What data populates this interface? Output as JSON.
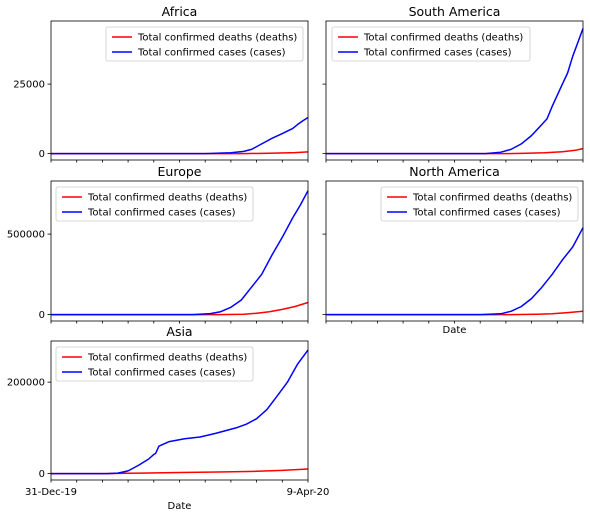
{
  "chart_data": [
    {
      "type": "line",
      "title": "Africa",
      "xlabel": "",
      "x_range": [
        "31-Dec-19",
        "9-Apr-20"
      ],
      "ylim": [
        -2300,
        47700
      ],
      "yticks": [
        0,
        25000
      ],
      "ytick_labels": [
        "0",
        "25000"
      ],
      "legend_position": "top-right",
      "series": [
        {
          "name": "Total confirmed deaths (deaths)",
          "color": "#ff0000",
          "x": [
            0,
            75,
            85,
            95,
            100
          ],
          "y": [
            0,
            0,
            150,
            350,
            600
          ]
        },
        {
          "name": "Total confirmed cases (cases)",
          "color": "#0000ff",
          "x": [
            0,
            60,
            70,
            75,
            78,
            82,
            86,
            90,
            94,
            96,
            98,
            100
          ],
          "y": [
            0,
            0,
            300,
            800,
            1500,
            3500,
            5500,
            7200,
            9000,
            10500,
            11800,
            13000
          ]
        }
      ]
    },
    {
      "type": "line",
      "title": "South America",
      "xlabel": "",
      "x_range": [
        "31-Dec-19",
        "9-Apr-20"
      ],
      "ylim": [
        -2300,
        47700
      ],
      "yticks": [
        0,
        25000
      ],
      "ytick_labels": [],
      "legend_position": "top-left",
      "series": [
        {
          "name": "Total confirmed deaths (deaths)",
          "color": "#ff0000",
          "x": [
            0,
            70,
            78,
            85,
            92,
            97,
            100
          ],
          "y": [
            0,
            0,
            100,
            300,
            700,
            1200,
            1800
          ]
        },
        {
          "name": "Total confirmed cases (cases)",
          "color": "#0000ff",
          "x": [
            0,
            62,
            68,
            72,
            76,
            80,
            83,
            86,
            88,
            90,
            92,
            94,
            96,
            98,
            100
          ],
          "y": [
            0,
            0,
            500,
            1500,
            3500,
            6500,
            9500,
            12500,
            17000,
            21000,
            25000,
            29000,
            35000,
            40000,
            45000
          ]
        }
      ]
    },
    {
      "type": "line",
      "title": "Europe",
      "xlabel": "",
      "x_range": [
        "31-Dec-19",
        "9-Apr-20"
      ],
      "ylim": [
        -40000,
        830000
      ],
      "yticks": [
        0,
        500000
      ],
      "ytick_labels": [
        "0",
        "500000"
      ],
      "legend_position": "top-left",
      "series": [
        {
          "name": "Total confirmed deaths (deaths)",
          "color": "#ff0000",
          "x": [
            0,
            65,
            75,
            80,
            85,
            90,
            95,
            100
          ],
          "y": [
            0,
            0,
            2000,
            8000,
            18000,
            32000,
            50000,
            75000
          ]
        },
        {
          "name": "Total confirmed cases (cases)",
          "color": "#0000ff",
          "x": [
            0,
            55,
            62,
            66,
            70,
            74,
            78,
            82,
            86,
            90,
            94,
            97,
            100
          ],
          "y": [
            0,
            0,
            6000,
            18000,
            45000,
            90000,
            170000,
            250000,
            370000,
            480000,
            600000,
            680000,
            770000
          ]
        }
      ]
    },
    {
      "type": "line",
      "title": "North America",
      "xlabel": "Date",
      "x_range": [
        "31-Dec-19",
        "9-Apr-20"
      ],
      "ylim": [
        -40000,
        830000
      ],
      "yticks": [
        0,
        500000
      ],
      "ytick_labels": [],
      "legend_position": "top-right",
      "series": [
        {
          "name": "Total confirmed deaths (deaths)",
          "color": "#ff0000",
          "x": [
            0,
            72,
            82,
            88,
            94,
            100
          ],
          "y": [
            0,
            0,
            2000,
            5000,
            12000,
            20000
          ]
        },
        {
          "name": "Total confirmed cases (cases)",
          "color": "#0000ff",
          "x": [
            0,
            60,
            68,
            72,
            76,
            80,
            84,
            88,
            92,
            96,
            100
          ],
          "y": [
            0,
            0,
            5000,
            20000,
            50000,
            100000,
            170000,
            250000,
            340000,
            420000,
            540000
          ]
        }
      ]
    },
    {
      "type": "line",
      "title": "Asia",
      "xlabel": "Date",
      "x_range": [
        "31-Dec-19",
        "9-Apr-20"
      ],
      "xticks": [
        "31-Dec-19",
        "9-Apr-20"
      ],
      "ylim": [
        -14000,
        290000
      ],
      "yticks": [
        0,
        200000
      ],
      "ytick_labels": [
        "0",
        "200000"
      ],
      "legend_position": "top-left",
      "series": [
        {
          "name": "Total confirmed deaths (deaths)",
          "color": "#ff0000",
          "x": [
            0,
            20,
            35,
            50,
            65,
            80,
            90,
            100
          ],
          "y": [
            0,
            0,
            1000,
            2500,
            3500,
            5000,
            7000,
            10000
          ]
        },
        {
          "name": "Total confirmed cases (cases)",
          "color": "#0000ff",
          "x": [
            0,
            22,
            26,
            30,
            34,
            38,
            40,
            40.7,
            42,
            46,
            52,
            58,
            64,
            68,
            72,
            76,
            80,
            84,
            88,
            92,
            96,
            100
          ],
          "y": [
            0,
            0,
            1000,
            6000,
            18000,
            32000,
            42000,
            44000,
            60000,
            70000,
            76000,
            80000,
            88000,
            94000,
            100000,
            108000,
            120000,
            140000,
            170000,
            200000,
            240000,
            270000
          ]
        }
      ]
    }
  ]
}
